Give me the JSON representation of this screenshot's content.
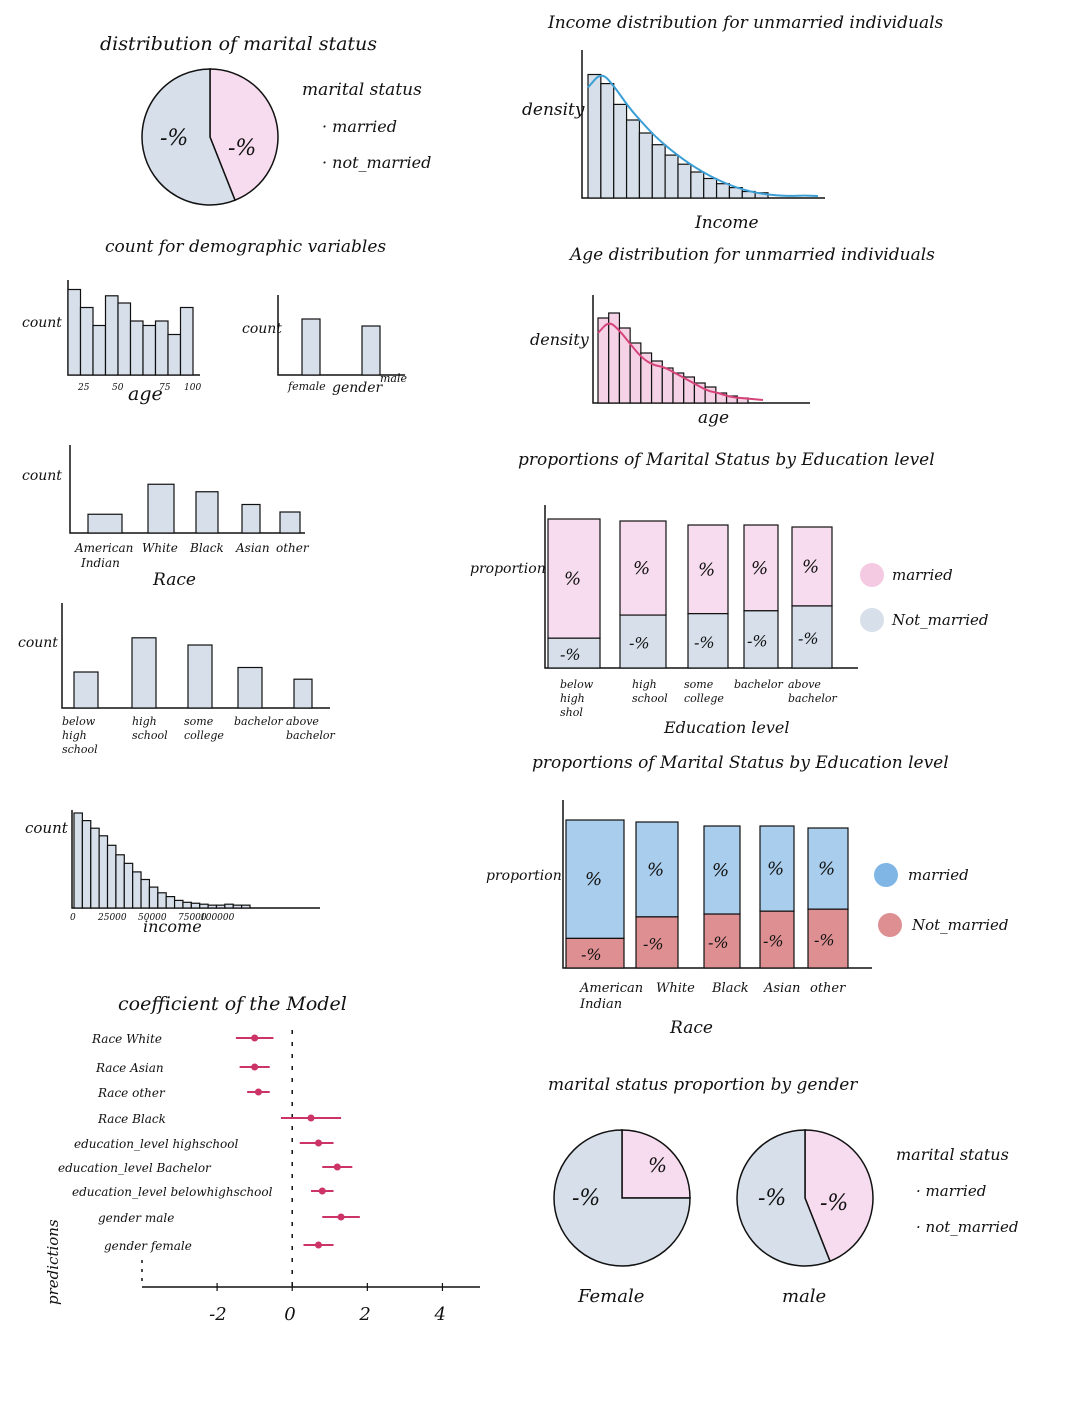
{
  "colors": {
    "pink": "#f6dcee",
    "pink_strong": "#f4c9e2",
    "grey_blue": "#d6dfea",
    "blue": "#a9cdec",
    "blue_dot": "#7fb6e6",
    "salmon": "#dd8f92",
    "line_blue": "#3b9fd6",
    "line_pink": "#d6457a",
    "point": "#cc3366",
    "ink": "#111111"
  },
  "chart_data": [
    {
      "id": "marital_pie",
      "type": "pie",
      "title": "distribution of marital status",
      "slices": [
        {
          "name": "married",
          "value": 0.44,
          "label": "-%",
          "color": "#f6dcee"
        },
        {
          "name": "not_married",
          "value": 0.56,
          "label": "-%",
          "color": "#d6dfea"
        }
      ],
      "legend": {
        "title": "marital status",
        "items": [
          "· married",
          "· not_married"
        ],
        "placement": "right"
      }
    },
    {
      "id": "income_unmarried",
      "type": "bar",
      "title": "Income distribution for unmarried individuals",
      "xlabel": "Income",
      "ylabel": "density",
      "values": [
        0.95,
        0.88,
        0.72,
        0.6,
        0.5,
        0.41,
        0.33,
        0.26,
        0.2,
        0.15,
        0.11,
        0.08,
        0.05,
        0.04
      ],
      "density_curve": [
        0.85,
        0.97,
        0.85,
        0.7,
        0.58,
        0.47,
        0.38,
        0.3,
        0.23,
        0.17,
        0.12,
        0.08,
        0.05,
        0.03,
        0.02,
        0.015,
        0.02,
        0.015
      ],
      "curve_color": "#3b9fd6"
    },
    {
      "id": "age_count",
      "type": "bar",
      "title": "count for demographic variables",
      "ylabel": "count",
      "xlabel": "age",
      "tick_labels": [
        "25",
        "50",
        "75",
        "100"
      ],
      "values": [
        0.95,
        0.75,
        0.55,
        0.88,
        0.8,
        0.6,
        0.55,
        0.6,
        0.45,
        0.75
      ]
    },
    {
      "id": "gender_count",
      "type": "bar",
      "ylabel": "count",
      "xlabel": "gender",
      "categories": [
        "female",
        "male"
      ],
      "values": [
        0.8,
        0.7
      ]
    },
    {
      "id": "age_unmarried",
      "type": "bar",
      "title": "Age distribution for unmarried individuals",
      "xlabel": "age",
      "ylabel": "density",
      "values": [
        0.85,
        0.9,
        0.75,
        0.6,
        0.5,
        0.42,
        0.35,
        0.3,
        0.26,
        0.2,
        0.16,
        0.1,
        0.07,
        0.05
      ],
      "density_curve": [
        0.7,
        0.82,
        0.72,
        0.58,
        0.45,
        0.38,
        0.36,
        0.3,
        0.24,
        0.18,
        0.12,
        0.1,
        0.06,
        0.05,
        0.04,
        0.03
      ],
      "curve_color": "#d6457a"
    },
    {
      "id": "race_count",
      "type": "bar",
      "ylabel": "count",
      "xlabel": "Race",
      "categories": [
        "American Indian",
        "White",
        "Black",
        "Asian",
        "other"
      ],
      "values": [
        0.25,
        0.65,
        0.55,
        0.38,
        0.28
      ]
    },
    {
      "id": "edu_prop_gender",
      "type": "bar",
      "stacked": true,
      "title": "proportions of Marital Status by Education level",
      "xlabel": "Education level",
      "ylabel": "proportion",
      "categories": [
        "below high shol",
        "high school",
        "some college",
        "bachelor",
        "above bachelor"
      ],
      "series": [
        {
          "name": "Not_married",
          "values": [
            0.2,
            0.36,
            0.38,
            0.4,
            0.44
          ],
          "color": "#d6dfea",
          "label": "-%"
        },
        {
          "name": "married",
          "values": [
            0.8,
            0.64,
            0.62,
            0.6,
            0.56
          ],
          "color": "#f6dcee",
          "label": "%"
        }
      ]
    },
    {
      "id": "edu_count",
      "type": "bar",
      "ylabel": "count",
      "categories": [
        "below high school",
        "high school",
        "some college",
        "bachelor",
        "above bachelor"
      ],
      "values": [
        0.4,
        0.78,
        0.7,
        0.45,
        0.32
      ]
    },
    {
      "id": "race_prop",
      "type": "bar",
      "stacked": true,
      "title": "proportions of Marital Status by Education level",
      "xlabel": "Race",
      "ylabel": "proportion",
      "categories": [
        "American Indian",
        "White",
        "Black",
        "Asian",
        "other"
      ],
      "series": [
        {
          "name": "Not_married",
          "values": [
            0.2,
            0.35,
            0.38,
            0.4,
            0.42
          ],
          "color": "#dd8f92",
          "label": "-%"
        },
        {
          "name": "married",
          "values": [
            0.8,
            0.65,
            0.62,
            0.6,
            0.58
          ],
          "color": "#a9cdec",
          "label": "%"
        }
      ]
    },
    {
      "id": "income_count",
      "type": "bar",
      "ylabel": "count",
      "xlabel": "income",
      "tick_labels": [
        "0",
        "25000",
        "50000",
        "75000",
        "100000"
      ],
      "values": [
        1.0,
        0.92,
        0.84,
        0.76,
        0.66,
        0.56,
        0.47,
        0.38,
        0.3,
        0.22,
        0.16,
        0.12,
        0.08,
        0.06,
        0.05,
        0.04,
        0.03,
        0.03,
        0.04,
        0.03,
        0.03
      ]
    },
    {
      "id": "coef",
      "type": "scatter",
      "title": "coefficient of the Model",
      "ylabel": "predictions",
      "xticks": [
        "-2",
        "0",
        "2",
        "4"
      ],
      "xlim": [
        -4,
        5
      ],
      "points": [
        {
          "label": "Race White",
          "x": -1.0,
          "lo": -1.5,
          "hi": -0.5
        },
        {
          "label": "Race Asian",
          "x": -1.0,
          "lo": -1.4,
          "hi": -0.6
        },
        {
          "label": "Race other",
          "x": -0.9,
          "lo": -1.2,
          "hi": -0.6
        },
        {
          "label": "Race Black",
          "x": 0.5,
          "lo": -0.3,
          "hi": 1.3
        },
        {
          "label": "education_level highschool",
          "x": 0.7,
          "lo": 0.2,
          "hi": 1.1
        },
        {
          "label": "education_level Bachelor",
          "x": 1.2,
          "lo": 0.8,
          "hi": 1.6
        },
        {
          "label": "education_level belowhighschool",
          "x": 0.8,
          "lo": 0.5,
          "hi": 1.1
        },
        {
          "label": "gender male",
          "x": 1.3,
          "lo": 0.8,
          "hi": 1.8
        },
        {
          "label": "gender female",
          "x": 0.7,
          "lo": 0.3,
          "hi": 1.1
        }
      ]
    },
    {
      "id": "gender_pies",
      "type": "pie",
      "title": "marital status proportion by gender",
      "pies": [
        {
          "name": "Female",
          "slices": [
            {
              "name": "married",
              "value": 0.25,
              "label": "%",
              "color": "#f6dcee"
            },
            {
              "name": "not_married",
              "value": 0.75,
              "label": "-%",
              "color": "#d6dfea"
            }
          ]
        },
        {
          "name": "male",
          "slices": [
            {
              "name": "married",
              "value": 0.44,
              "label": "-%",
              "color": "#f6dcee"
            },
            {
              "name": "not_married",
              "value": 0.56,
              "label": "-%",
              "color": "#d6dfea"
            }
          ]
        }
      ],
      "legend": {
        "title": "marital status",
        "items": [
          "· married",
          "· not_married"
        ],
        "placement": "right"
      }
    }
  ],
  "texts": {
    "pie1_title": "distribution of marital status",
    "pie1_legend_title": "marital status",
    "pie1_legend_1": "· married",
    "pie1_legend_2": "· not_married",
    "pie1_label_left": "-%",
    "pie1_label_right": "-%",
    "income_title": "Income distribution for unmarried individuals",
    "income_ylabel": "density",
    "income_xlabel": "Income",
    "count_title": "count for demographic variables",
    "count_label": "count",
    "age_xlabel": "age",
    "gender_xlabel": "gender",
    "age_dist_title": "Age distribution for unmarried individuals",
    "age_dist_ylabel": "density",
    "age_dist_xlabel": "age",
    "race_xlabel": "Race",
    "edu_prop_title": "proportions of Marital Status by Education level",
    "proportion_label": "proportion",
    "edu_prop_xlabel": "Education level",
    "married": "married",
    "not_married": "Not_married",
    "race_prop_title": "proportions of Marital Status by Education level",
    "race_prop_xlabel": "Race",
    "income_count_xlabel": "income",
    "coef_title": "coefficient of the Model",
    "coef_ylabel": "predictions",
    "gender_pie_title": "marital status proportion by gender",
    "female": "Female",
    "male": "male",
    "gender_legend_title": "marital status",
    "gender_legend_1": "· married",
    "gender_legend_2": "· not_married"
  }
}
